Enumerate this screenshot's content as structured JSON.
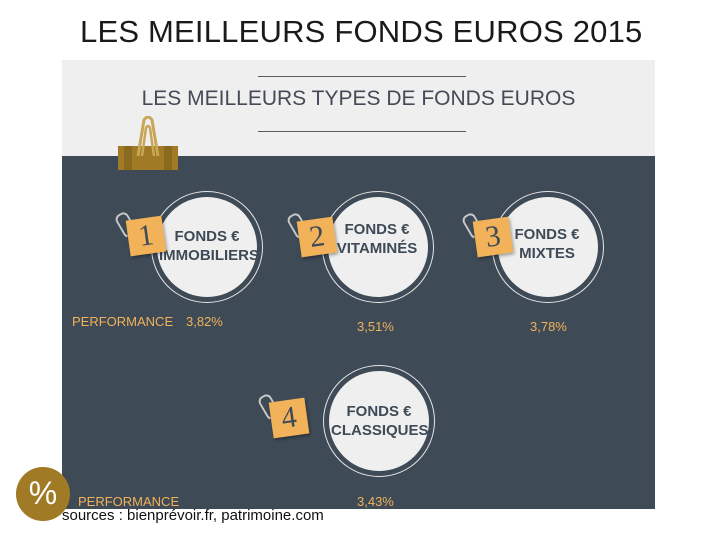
{
  "title": "LES MEILLEURS FONDS EUROS 2015",
  "subtitle": "LES MEILLEURS TYPES DE FONDS EUROS",
  "badge_symbol": "%",
  "sources": "sources : bienprévoir.fr, patrimoine.com",
  "performance_label": "PERFORMANCE",
  "colors": {
    "panel": "#3e4a56",
    "accent": "#f1b25a",
    "badge": "#a07a24"
  },
  "icons": [
    "paperclip-binder-icon",
    "pin-icon",
    "percent-icon"
  ],
  "items": [
    {
      "rank": "1",
      "line1": "FONDS €",
      "line2": "IMMOBILIERS",
      "performance": "3,82%"
    },
    {
      "rank": "2",
      "line1": "FONDS €",
      "line2": "VITAMINÉS",
      "performance": "3,51%"
    },
    {
      "rank": "3",
      "line1": "FONDS €",
      "line2": "MIXTES",
      "performance": "3,78%"
    },
    {
      "rank": "4",
      "line1": "FONDS €",
      "line2": "CLASSIQUES",
      "performance": "3,43%"
    }
  ]
}
